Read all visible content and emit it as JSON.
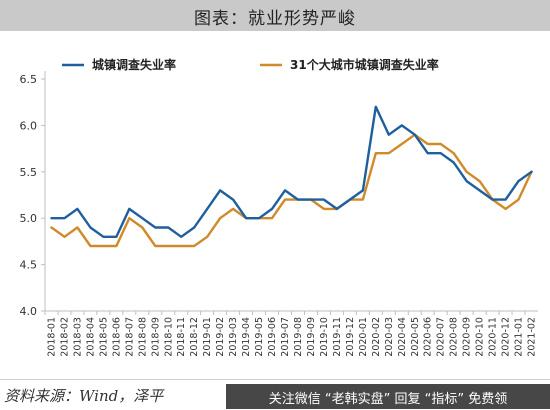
{
  "header": {
    "title": "图表：就业形势严峻"
  },
  "footer": {
    "source": "资料来源：Wind，泽平"
  },
  "overlay": {
    "text": "关注微信 “老韩实盘” 回复 “指标” 免费领"
  },
  "colors": {
    "series1": "#1f5f9e",
    "series2": "#d08a2a",
    "axis": "#bfbfbf"
  },
  "chart_data": {
    "type": "line",
    "title": "",
    "xlabel": "",
    "ylabel": "",
    "ylim": [
      4.0,
      6.5
    ],
    "yticks": [
      "4.0",
      "4.5",
      "5.0",
      "5.5",
      "6.0",
      "6.5"
    ],
    "grid": false,
    "legend": "top",
    "categories": [
      "2018-01",
      "2018-02",
      "2018-03",
      "2018-04",
      "2018-05",
      "2018-06",
      "2018-07",
      "2018-08",
      "2018-09",
      "2018-10",
      "2018-11",
      "2018-12",
      "2019-01",
      "2019-02",
      "2019-03",
      "2019-04",
      "2019-05",
      "2019-06",
      "2019-07",
      "2019-08",
      "2019-09",
      "2019-10",
      "2019-11",
      "2019-12",
      "2020-01",
      "2020-02",
      "2020-03",
      "2020-04",
      "2020-05",
      "2020-06",
      "2020-07",
      "2020-08",
      "2020-09",
      "2020-10",
      "2020-11",
      "2020-12",
      "2021-01",
      "2021-02"
    ],
    "series": [
      {
        "name": "城镇调查失业率",
        "values": [
          5.0,
          5.0,
          5.1,
          4.9,
          4.8,
          4.8,
          5.1,
          5.0,
          4.9,
          4.9,
          4.8,
          4.9,
          5.1,
          5.3,
          5.2,
          5.0,
          5.0,
          5.1,
          5.3,
          5.2,
          5.2,
          5.2,
          5.1,
          5.2,
          5.3,
          6.2,
          5.9,
          6.0,
          5.9,
          5.7,
          5.7,
          5.6,
          5.4,
          5.3,
          5.2,
          5.2,
          5.4,
          5.5
        ]
      },
      {
        "name": "31个大城市城镇调查失业率",
        "values": [
          4.9,
          4.8,
          4.9,
          4.7,
          4.7,
          4.7,
          5.0,
          4.9,
          4.7,
          4.7,
          4.7,
          4.7,
          4.8,
          5.0,
          5.1,
          5.0,
          5.0,
          5.0,
          5.2,
          5.2,
          5.2,
          5.1,
          5.1,
          5.2,
          5.2,
          5.7,
          5.7,
          5.8,
          5.9,
          5.8,
          5.8,
          5.7,
          5.5,
          5.4,
          5.2,
          5.1,
          5.2,
          5.5
        ]
      }
    ]
  }
}
